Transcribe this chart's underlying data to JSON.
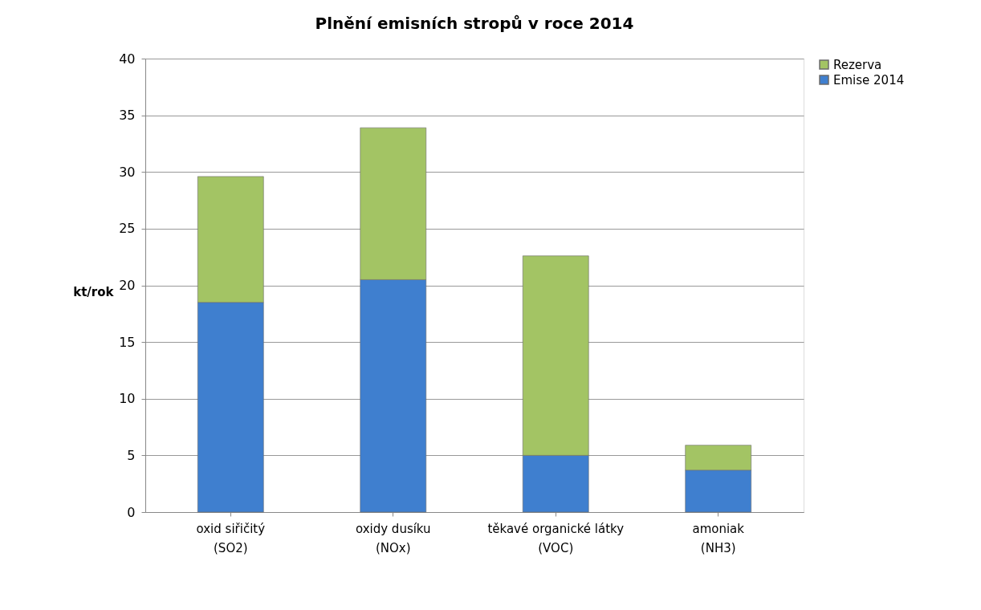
{
  "chart_data": {
    "type": "bar",
    "title": "Plnění emisních stropů v roce 2014",
    "ylabel": "kt/rok",
    "categories": [
      "oxid siřičitý\n(SO2)",
      "oxidy dusíku\n(NOx)",
      "těkavé organické látky\n(VOC)",
      "amoniak\n(NH3)"
    ],
    "series": [
      {
        "name": "Emise 2014",
        "color": "#3f7fcf",
        "values": [
          18.5,
          20.5,
          5.0,
          3.7
        ]
      },
      {
        "name": "Rezerva",
        "color": "#a3c464",
        "values": [
          11.1,
          13.4,
          17.6,
          2.2
        ]
      }
    ],
    "stacked": true,
    "ylim": [
      0,
      40
    ],
    "yticks": [
      0,
      5,
      10,
      15,
      20,
      25,
      30,
      35,
      40
    ],
    "grid": "y",
    "legend": "right"
  }
}
